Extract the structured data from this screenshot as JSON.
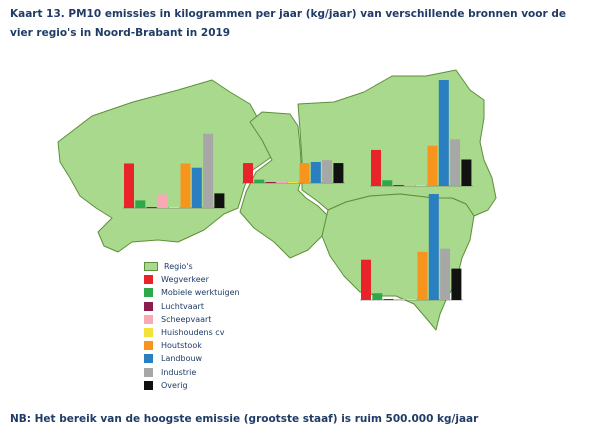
{
  "title": "Kaart 13. PM10 emissies in kilogrammen per jaar (kg/jaar) van verschillende bronnen voor de vier regio's in Noord-Brabant in 2019",
  "footnote": "NB: Het bereik van de hoogste emissie (grootste staaf) is ruim 500.000 kg/jaar",
  "colors": {
    "region_fill": "#a9d98c",
    "region_stroke": "#5e8f3a",
    "baseline": "#555555"
  },
  "legend": {
    "region_label": "Regio's",
    "items": [
      {
        "label": "Wegverkeer",
        "color": "#e8242a"
      },
      {
        "label": "Mobiele werktuigen",
        "color": "#2fa84a"
      },
      {
        "label": "Luchtvaart",
        "color": "#8a1f4e"
      },
      {
        "label": "Scheepvaart",
        "color": "#f7a9b5"
      },
      {
        "label": "Huishoudens cv",
        "color": "#f2e33a"
      },
      {
        "label": "Houtstook",
        "color": "#f7941d"
      },
      {
        "label": "Landbouw",
        "color": "#2a7fc1"
      },
      {
        "label": "Industrie",
        "color": "#a7a7a7"
      },
      {
        "label": "Overig",
        "color": "#111111"
      }
    ]
  },
  "chart_data": {
    "type": "bar",
    "note": "Relative bar heights per region; scale: tallest bar (Landbouw, Oost) ≈ 500.000 kg/jaar",
    "categories": [
      "Wegverkeer",
      "Mobiele werktuigen",
      "Luchtvaart",
      "Scheepvaart",
      "Huishoudens cv",
      "Houtstook",
      "Landbouw",
      "Industrie",
      "Overig"
    ],
    "series": [
      {
        "values": [
          210000,
          36000,
          1500,
          64000,
          2000,
          210000,
          190000,
          350000,
          69000
        ]
      },
      {
        "values": [
          94000,
          16000,
          1000,
          5000,
          2000,
          94000,
          99000,
          108000,
          94000
        ]
      },
      {
        "values": [
          170000,
          27000,
          1000,
          5000,
          3000,
          190000,
          500000,
          220000,
          125000
        ]
      },
      {
        "values": [
          190000,
          32000,
          1000,
          5000,
          3000,
          227000,
          500000,
          242000,
          148000
        ]
      }
    ]
  }
}
